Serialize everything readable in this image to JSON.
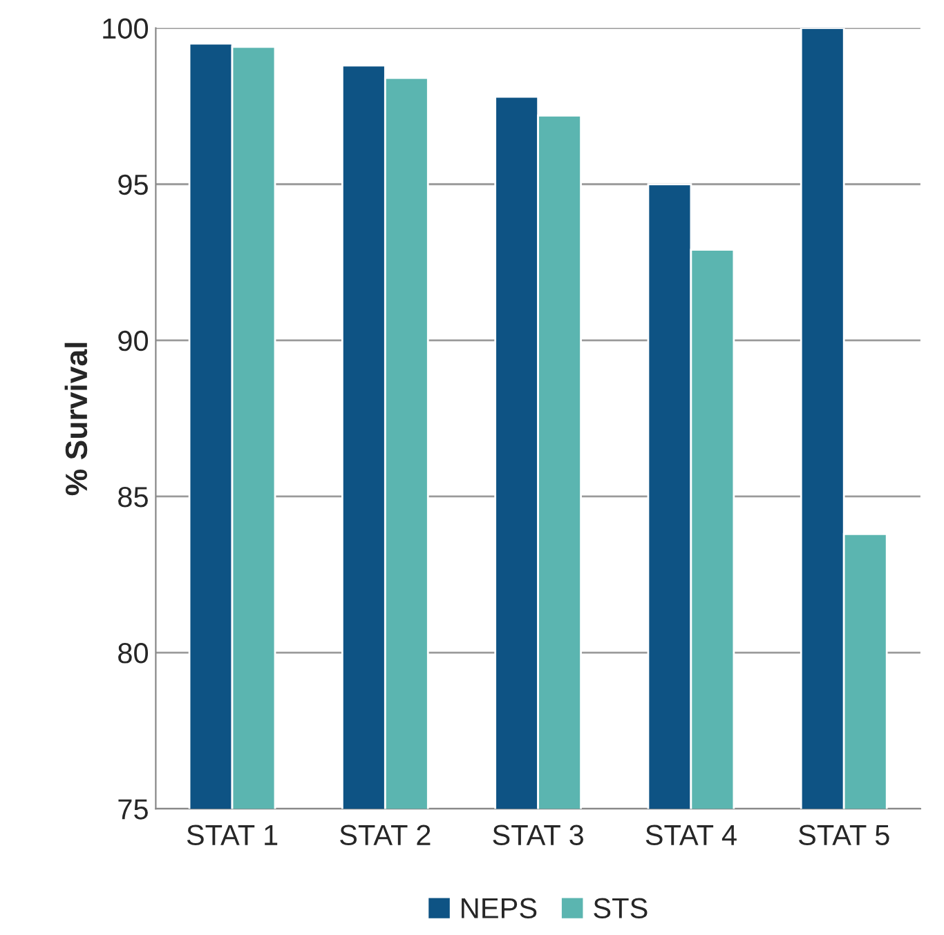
{
  "chart_data": {
    "type": "bar",
    "ylabel": "% Survival",
    "categories": [
      "STAT 1",
      "STAT 2",
      "STAT 3",
      "STAT 4",
      "STAT 5"
    ],
    "series": [
      {
        "name": "NEPS",
        "color": "#0e5384",
        "values": [
          99.5,
          98.8,
          97.8,
          95.0,
          100
        ]
      },
      {
        "name": "STS",
        "color": "#5bb5b0",
        "values": [
          99.4,
          98.4,
          97.2,
          92.9,
          83.8
        ]
      }
    ],
    "ylim": [
      75,
      100
    ],
    "yticks": [
      75,
      80,
      85,
      90,
      95,
      100
    ],
    "grid": "y",
    "legend": "bottom"
  }
}
